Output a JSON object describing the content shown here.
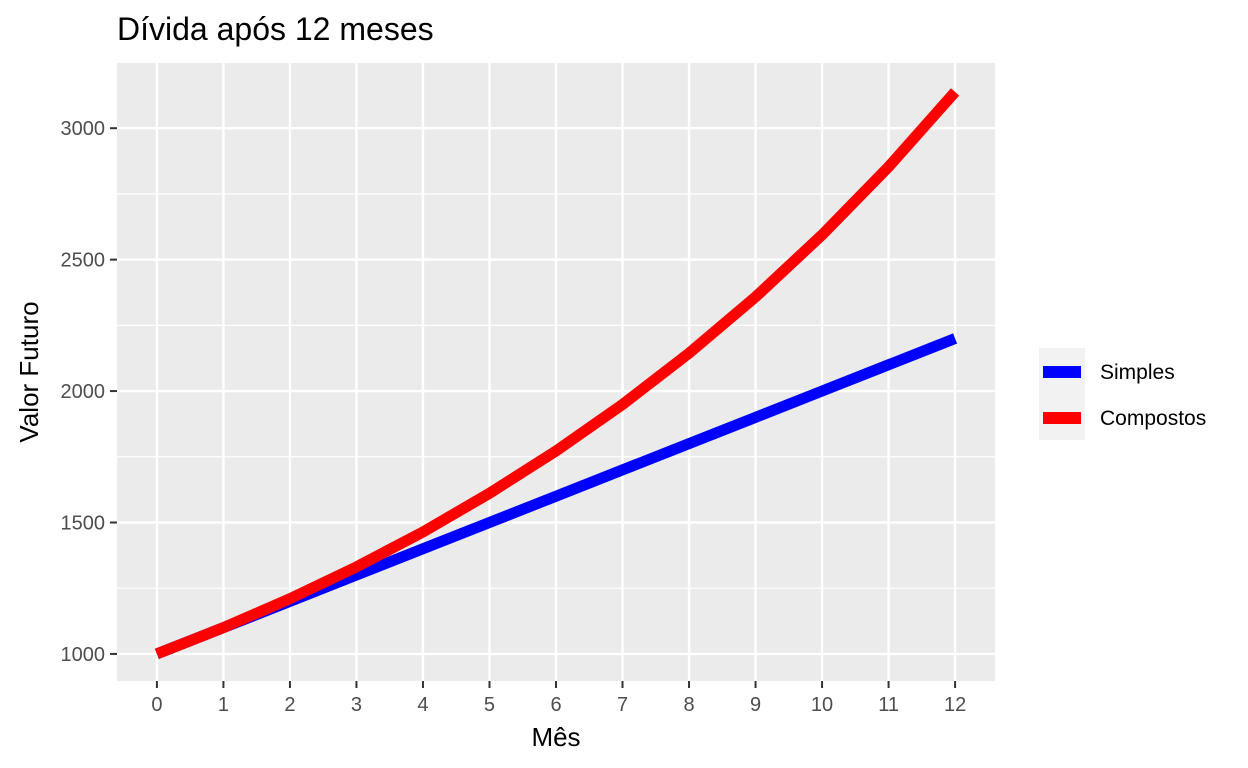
{
  "chart_data": {
    "type": "line",
    "title": "Dívida após 12 meses",
    "xlabel": "Mês",
    "ylabel": "Valor Futuro",
    "x": [
      0,
      1,
      2,
      3,
      4,
      5,
      6,
      7,
      8,
      9,
      10,
      11,
      12
    ],
    "xticks": [
      0,
      1,
      2,
      3,
      4,
      5,
      6,
      7,
      8,
      9,
      10,
      11,
      12
    ],
    "yticks": [
      1000,
      1500,
      2000,
      2500,
      3000
    ],
    "xlim": [
      -0.6,
      12.6
    ],
    "ylim": [
      897,
      3248
    ],
    "grid": true,
    "legend": "right",
    "panel_background": "#ebebeb",
    "grid_color": "#ffffff",
    "series": [
      {
        "name": "Simples",
        "color": "#0000ff",
        "values": [
          1000,
          1100,
          1200,
          1300,
          1400,
          1500,
          1600,
          1700,
          1800,
          1900,
          2000,
          2100,
          2200
        ]
      },
      {
        "name": "Compostos",
        "color": "#ff0000",
        "values": [
          1000,
          1100,
          1210,
          1331,
          1464,
          1611,
          1772,
          1949,
          2144,
          2358,
          2594,
          2853,
          3138
        ]
      }
    ]
  }
}
